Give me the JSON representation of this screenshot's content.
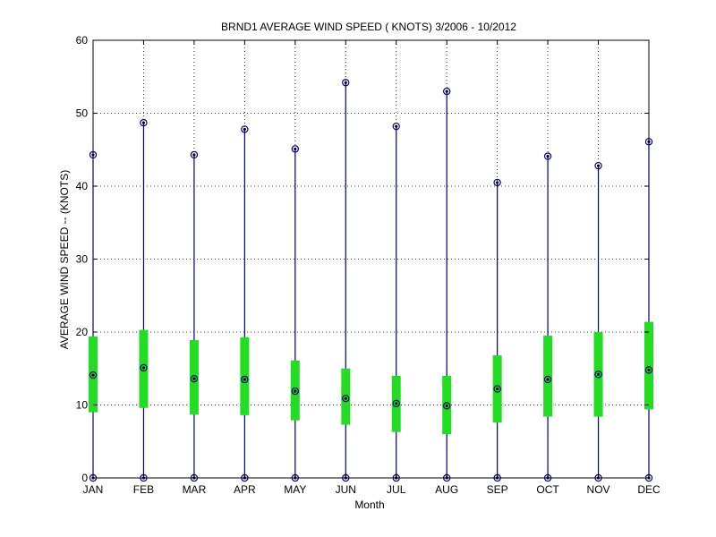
{
  "chart_data": {
    "type": "boxplot",
    "title": "BRND1  AVERAGE WIND SPEED ( KNOTS) 3/2006 - 10/2012",
    "xlabel": "Month",
    "ylabel": "AVERAGE WIND SPEED -- (KNOTS)",
    "categories": [
      "JAN",
      "FEB",
      "MAR",
      "APR",
      "MAY",
      "JUN",
      "JUL",
      "AUG",
      "SEP",
      "OCT",
      "NOV",
      "DEC"
    ],
    "series": [
      {
        "min": [
          0,
          0,
          0,
          0,
          0,
          0,
          0,
          0,
          0,
          0,
          0,
          0
        ],
        "q1": [
          9.0,
          9.6,
          8.7,
          8.6,
          7.9,
          7.3,
          6.3,
          6.0,
          7.6,
          8.4,
          8.4,
          9.4
        ],
        "median": [
          14.1,
          15.1,
          13.6,
          13.5,
          11.9,
          10.9,
          10.2,
          9.9,
          12.2,
          13.5,
          14.2,
          14.8
        ],
        "q3": [
          19.4,
          20.3,
          18.9,
          19.3,
          16.1,
          15.0,
          14.0,
          14.0,
          16.8,
          19.5,
          20.0,
          21.4
        ],
        "max": [
          44.3,
          48.7,
          44.3,
          47.8,
          45.1,
          54.2,
          48.2,
          53.0,
          40.5,
          44.1,
          42.8,
          46.1
        ]
      }
    ],
    "ylim": [
      0,
      60
    ],
    "yticks": [
      0,
      10,
      20,
      30,
      40,
      50,
      60
    ],
    "grid": true,
    "colors": {
      "whisker": "#00008b",
      "box": "#22dd22",
      "marker": "#000000"
    }
  }
}
